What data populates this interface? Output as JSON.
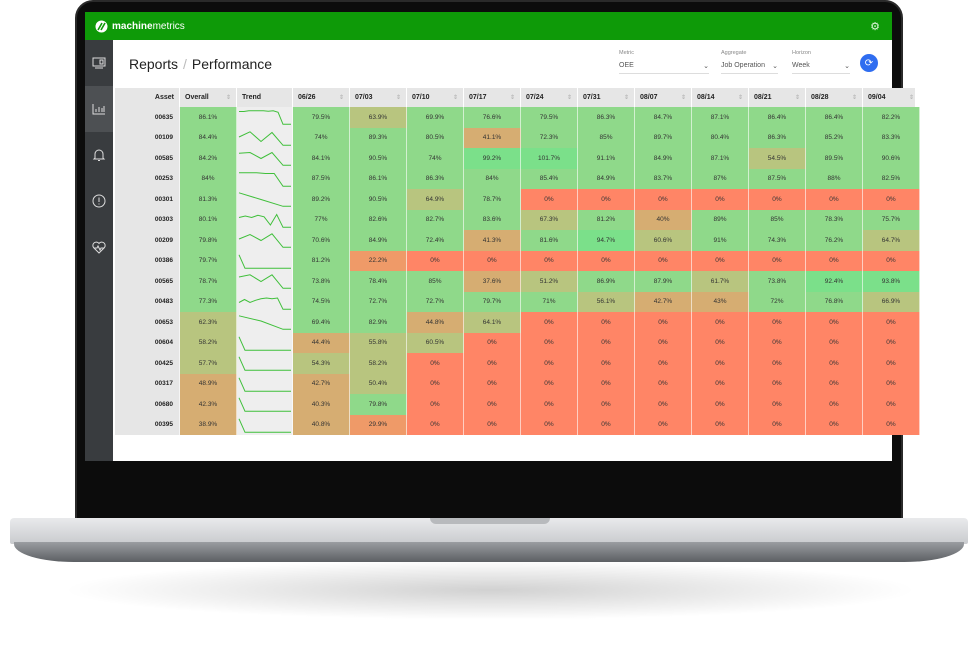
{
  "app": {
    "brand_bold": "machine",
    "brand_light": "metrics"
  },
  "header": {
    "breadcrumb_root": "Reports",
    "breadcrumb_separator": "/",
    "page_title": "Performance"
  },
  "controls": {
    "metric": {
      "label": "Metric",
      "value": "OEE"
    },
    "aggregate": {
      "label": "Aggregate",
      "value": "Job Operation"
    },
    "horizon": {
      "label": "Horizon",
      "value": "Week"
    }
  },
  "sidebar": {
    "items": [
      {
        "icon": "monitor-icon",
        "active": false
      },
      {
        "icon": "bar-chart-icon",
        "active": true
      },
      {
        "icon": "bell-icon",
        "active": false
      },
      {
        "icon": "alert-circle-icon",
        "active": false
      },
      {
        "icon": "heart-pulse-icon",
        "active": false
      }
    ]
  },
  "table": {
    "columns": {
      "asset": "Asset",
      "overall": "Overall",
      "trend": "Trend",
      "weeks": [
        "06/26",
        "07/03",
        "07/10",
        "07/17",
        "07/24",
        "07/31",
        "08/07",
        "08/14",
        "08/21",
        "08/28",
        "09/04"
      ]
    },
    "rows": [
      {
        "asset": "00635",
        "overall": "86.1%",
        "values": [
          "79.5%",
          "63.9%",
          "69.9%",
          "76.6%",
          "79.5%",
          "86.3%",
          "84.7%",
          "87.1%",
          "86.4%",
          "86.4%",
          "82.2%"
        ]
      },
      {
        "asset": "00109",
        "overall": "84.4%",
        "values": [
          "74%",
          "89.3%",
          "80.5%",
          "41.1%",
          "72.3%",
          "85%",
          "89.7%",
          "80.4%",
          "86.3%",
          "85.2%",
          "83.3%"
        ]
      },
      {
        "asset": "00585",
        "overall": "84.2%",
        "values": [
          "84.1%",
          "90.5%",
          "74%",
          "99.2%",
          "101.7%",
          "91.1%",
          "84.9%",
          "87.1%",
          "54.5%",
          "89.5%",
          "90.6%"
        ]
      },
      {
        "asset": "00253",
        "overall": "84%",
        "values": [
          "87.5%",
          "86.1%",
          "86.3%",
          "84%",
          "85.4%",
          "84.9%",
          "83.7%",
          "87%",
          "87.5%",
          "88%",
          "82.5%"
        ]
      },
      {
        "asset": "00301",
        "overall": "81.3%",
        "values": [
          "89.2%",
          "90.5%",
          "64.9%",
          "78.7%",
          "0%",
          "0%",
          "0%",
          "0%",
          "0%",
          "0%",
          "0%"
        ]
      },
      {
        "asset": "00303",
        "overall": "80.1%",
        "values": [
          "77%",
          "82.6%",
          "82.7%",
          "83.6%",
          "67.3%",
          "81.2%",
          "40%",
          "89%",
          "85%",
          "78.3%",
          "75.7%"
        ]
      },
      {
        "asset": "00209",
        "overall": "79.8%",
        "values": [
          "70.6%",
          "84.9%",
          "72.4%",
          "41.3%",
          "81.6%",
          "94.7%",
          "60.6%",
          "91%",
          "74.3%",
          "76.2%",
          "64.7%"
        ]
      },
      {
        "asset": "00386",
        "overall": "79.7%",
        "values": [
          "81.2%",
          "22.2%",
          "0%",
          "0%",
          "0%",
          "0%",
          "0%",
          "0%",
          "0%",
          "0%",
          "0%"
        ]
      },
      {
        "asset": "00565",
        "overall": "78.7%",
        "values": [
          "73.8%",
          "78.4%",
          "85%",
          "37.6%",
          "51.2%",
          "86.9%",
          "87.9%",
          "61.7%",
          "73.8%",
          "92.4%",
          "93.8%"
        ]
      },
      {
        "asset": "00483",
        "overall": "77.3%",
        "values": [
          "74.5%",
          "72.7%",
          "72.7%",
          "79.7%",
          "71%",
          "56.1%",
          "42.7%",
          "43%",
          "72%",
          "76.8%",
          "66.9%"
        ]
      },
      {
        "asset": "00653",
        "overall": "62.3%",
        "values": [
          "69.4%",
          "82.9%",
          "44.8%",
          "64.1%",
          "0%",
          "0%",
          "0%",
          "0%",
          "0%",
          "0%",
          "0%"
        ]
      },
      {
        "asset": "00604",
        "overall": "58.2%",
        "values": [
          "44.4%",
          "55.8%",
          "60.5%",
          "0%",
          "0%",
          "0%",
          "0%",
          "0%",
          "0%",
          "0%",
          "0%"
        ]
      },
      {
        "asset": "00425",
        "overall": "57.7%",
        "values": [
          "54.3%",
          "58.2%",
          "0%",
          "0%",
          "0%",
          "0%",
          "0%",
          "0%",
          "0%",
          "0%",
          "0%"
        ]
      },
      {
        "asset": "00317",
        "overall": "48.9%",
        "values": [
          "42.7%",
          "50.4%",
          "0%",
          "0%",
          "0%",
          "0%",
          "0%",
          "0%",
          "0%",
          "0%",
          "0%"
        ]
      },
      {
        "asset": "00680",
        "overall": "42.3%",
        "values": [
          "40.3%",
          "79.8%",
          "0%",
          "0%",
          "0%",
          "0%",
          "0%",
          "0%",
          "0%",
          "0%",
          "0%"
        ]
      },
      {
        "asset": "00395",
        "overall": "38.9%",
        "values": [
          "40.8%",
          "29.9%",
          "0%",
          "0%",
          "0%",
          "0%",
          "0%",
          "0%",
          "0%",
          "0%",
          "0%"
        ]
      }
    ]
  },
  "colors": {
    "topbar": "#0e9a08",
    "sidebar": "#393c3f",
    "accent": "#2f6df0",
    "high": "#7be08a",
    "good": "#8fd98a",
    "mid": "#b8c57f",
    "low": "#d6ad72",
    "zero": "#ff8566",
    "trend_line": "#3fbf3a"
  }
}
